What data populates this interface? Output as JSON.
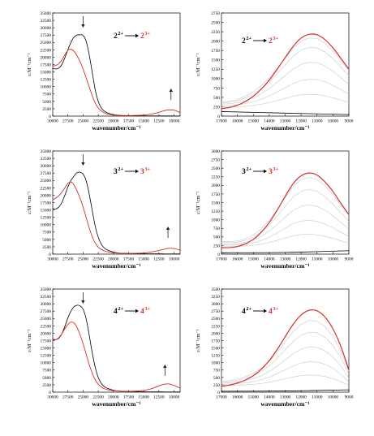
{
  "figure": {
    "colors": {
      "before": "#000000",
      "after": "#d62f2f",
      "intermediate": "#c8c8c8",
      "marker": "#1e1e1e"
    }
  },
  "chart_data": [
    {
      "type": "line",
      "panel": "2-full",
      "xlabel": "wavenumber/cm⁻¹",
      "ylabel": "ε/M⁻¹cm⁻¹",
      "xlim": [
        30000,
        9000
      ],
      "ylim": [
        0,
        35000
      ],
      "x_reversed": true,
      "xticks": [
        30000,
        27500,
        25000,
        22500,
        20000,
        17500,
        15000,
        12500,
        10000
      ],
      "yticks": [
        0,
        2500,
        5000,
        7500,
        10000,
        12500,
        15000,
        17500,
        20000,
        22500,
        25000,
        27500,
        30000,
        32500,
        35000
      ],
      "annotation": {
        "from": "2",
        "from_sup": "2+",
        "to": "2",
        "to_sup": "3+"
      },
      "arrows": [
        {
          "x": 25000,
          "direction": "down"
        },
        {
          "x": 10500,
          "direction": "up"
        }
      ],
      "series": [
        {
          "role": "before",
          "x": [
            30000,
            29500,
            29000,
            28500,
            28000,
            27500,
            27000,
            26500,
            26000,
            25500,
            25000,
            24500,
            24000,
            23500,
            23000,
            22500,
            22000,
            21500,
            21000,
            20000,
            19000,
            18000,
            17000,
            16000,
            15000,
            14000,
            13000,
            12000,
            11000,
            10000,
            9000
          ],
          "y": [
            16200,
            16000,
            16300,
            17500,
            19800,
            22500,
            25000,
            26800,
            27500,
            27600,
            27400,
            25500,
            21000,
            15000,
            9000,
            5000,
            2800,
            1700,
            1100,
            500,
            250,
            150,
            100,
            90,
            80,
            70,
            60,
            55,
            50,
            45,
            40
          ]
        },
        {
          "role": "after",
          "x": [
            30000,
            29500,
            29000,
            28500,
            28000,
            27500,
            27000,
            26500,
            26000,
            25500,
            25000,
            24500,
            24000,
            23500,
            23000,
            22500,
            22000,
            21500,
            21000,
            20000,
            19000,
            18000,
            17000,
            16000,
            15000,
            14000,
            13000,
            12000,
            11000,
            10000,
            9000
          ],
          "y": [
            17000,
            17200,
            17800,
            19000,
            20800,
            22300,
            22700,
            22000,
            20500,
            18500,
            16000,
            13000,
            10000,
            7000,
            4500,
            2800,
            1800,
            1100,
            700,
            350,
            250,
            200,
            200,
            250,
            350,
            600,
            1000,
            1600,
            2100,
            2000,
            1200
          ]
        }
      ]
    },
    {
      "type": "line",
      "panel": "2-zoom",
      "xlabel": "wavenumber/cm⁻¹",
      "ylabel": "ε/M⁻¹cm⁻¹",
      "xlim": [
        17000,
        9000
      ],
      "ylim": [
        0,
        2750
      ],
      "x_reversed": true,
      "xticks": [
        17000,
        16000,
        15000,
        14000,
        13000,
        12000,
        11000,
        10000,
        9000
      ],
      "yticks": [
        0,
        250,
        500,
        750,
        1000,
        1250,
        1500,
        1750,
        2000,
        2250,
        2500,
        2750
      ],
      "annotation": {
        "from": "2",
        "from_sup": "2+",
        "to": "2",
        "to_sup": "3+"
      },
      "band": {
        "baseline": [
          200,
          100
        ],
        "peak_x": 10800,
        "peak_heights": [
          450,
          850,
          1300,
          1700,
          1950
        ]
      },
      "series": [
        {
          "role": "before",
          "x": [
            17000,
            13000,
            9000
          ],
          "y": [
            120,
            80,
            40
          ]
        },
        {
          "role": "after",
          "x": [
            17000,
            16500,
            16000,
            15500,
            15000,
            14500,
            14000,
            13500,
            13000,
            12500,
            12000,
            11500,
            11000,
            10500,
            10000,
            9500,
            9000
          ],
          "y": [
            200,
            230,
            290,
            390,
            530,
            720,
            960,
            1250,
            1560,
            1860,
            2080,
            2180,
            2170,
            2040,
            1820,
            1540,
            1250
          ]
        }
      ]
    },
    {
      "type": "line",
      "panel": "3-full",
      "xlabel": "wavenumber/cm⁻¹",
      "ylabel": "ε/M⁻¹cm⁻¹",
      "xlim": [
        30000,
        9000
      ],
      "ylim": [
        0,
        35000
      ],
      "x_reversed": true,
      "xticks": [
        30000,
        27500,
        25000,
        22500,
        20000,
        17500,
        15000,
        12500,
        10000
      ],
      "yticks": [
        0,
        2500,
        5000,
        7500,
        10000,
        12500,
        15000,
        17500,
        20000,
        22500,
        25000,
        27500,
        30000,
        32500,
        35000
      ],
      "annotation": {
        "from": "3",
        "from_sup": "2+",
        "to": "3",
        "to_sup": "3+"
      },
      "arrows": [
        {
          "x": 25000,
          "direction": "down"
        },
        {
          "x": 11000,
          "direction": "up"
        }
      ],
      "series": [
        {
          "role": "before",
          "x": [
            30000,
            29500,
            29000,
            28500,
            28000,
            27500,
            27000,
            26500,
            26000,
            25500,
            25000,
            24500,
            24000,
            23500,
            23000,
            22500,
            22000,
            21500,
            21000,
            20000,
            19000,
            18000,
            17000,
            16000,
            15000,
            14000,
            13000,
            12000,
            11000,
            10000,
            9000
          ],
          "y": [
            15500,
            15300,
            16000,
            17500,
            20000,
            22800,
            25000,
            26500,
            27600,
            27800,
            27200,
            25000,
            20500,
            15000,
            9500,
            5800,
            3400,
            2100,
            1400,
            700,
            350,
            250,
            200,
            150,
            120,
            100,
            90,
            80,
            70,
            60,
            50
          ]
        },
        {
          "role": "after",
          "x": [
            30000,
            29500,
            29000,
            28500,
            28000,
            27500,
            27000,
            26500,
            26000,
            25500,
            25000,
            24500,
            24000,
            23500,
            23000,
            22500,
            22000,
            21500,
            21000,
            20000,
            19000,
            18000,
            17000,
            16000,
            15000,
            14000,
            13000,
            12000,
            11000,
            10000,
            9000
          ],
          "y": [
            18500,
            19000,
            19800,
            21000,
            22500,
            24000,
            24500,
            23500,
            21500,
            19000,
            16000,
            12500,
            9000,
            6000,
            3800,
            2400,
            1600,
            1100,
            800,
            450,
            300,
            250,
            250,
            300,
            400,
            650,
            1000,
            1500,
            1950,
            1900,
            1300
          ]
        }
      ]
    },
    {
      "type": "line",
      "panel": "3-zoom",
      "xlabel": "wavenumber/cm⁻¹",
      "ylabel": "ε/M⁻¹cm⁻¹",
      "xlim": [
        17000,
        9000
      ],
      "ylim": [
        0,
        3000
      ],
      "x_reversed": true,
      "xticks": [
        17000,
        16000,
        15000,
        14000,
        13000,
        12000,
        11000,
        10000,
        9000
      ],
      "yticks": [
        0,
        250,
        500,
        750,
        1000,
        1250,
        1500,
        1750,
        2000,
        2250,
        2500,
        2750,
        3000
      ],
      "annotation": {
        "from": "3",
        "from_sup": "2+",
        "to": "3",
        "to_sup": "3+"
      },
      "band": {
        "baseline": [
          200,
          100
        ],
        "peak_x": 11200,
        "peak_heights": [
          450,
          850,
          1300,
          1750,
          2100
        ]
      },
      "series": [
        {
          "role": "before",
          "x": [
            17000,
            13000,
            9000
          ],
          "y": [
            40,
            50,
            100
          ]
        },
        {
          "role": "after",
          "x": [
            17000,
            16500,
            16000,
            15500,
            15000,
            14500,
            14000,
            13500,
            13000,
            12500,
            12000,
            11500,
            11000,
            10500,
            10000,
            9500,
            9000
          ],
          "y": [
            190,
            190,
            220,
            300,
            430,
            640,
            920,
            1280,
            1680,
            2050,
            2280,
            2360,
            2300,
            2100,
            1820,
            1480,
            1150
          ]
        }
      ]
    },
    {
      "type": "line",
      "panel": "4-full",
      "xlabel": "wavenumber/cm⁻¹",
      "ylabel": "ε/M⁻¹cm⁻¹",
      "xlim": [
        30000,
        9000
      ],
      "ylim": [
        0,
        35000
      ],
      "x_reversed": true,
      "xticks": [
        30000,
        27500,
        25000,
        22500,
        20000,
        17500,
        15000,
        12500,
        10000
      ],
      "yticks": [
        0,
        2500,
        5000,
        7500,
        10000,
        12500,
        15000,
        17500,
        20000,
        22500,
        25000,
        27500,
        30000,
        32500,
        35000
      ],
      "annotation": {
        "from": "4",
        "from_sup": "2+",
        "to": "4",
        "to_sup": "3+"
      },
      "arrows": [
        {
          "x": 25000,
          "direction": "down"
        },
        {
          "x": 11500,
          "direction": "up"
        }
      ],
      "series": [
        {
          "role": "before",
          "x": [
            30000,
            29500,
            29000,
            28500,
            28000,
            27500,
            27000,
            26500,
            26000,
            25500,
            25000,
            24500,
            24000,
            23500,
            23000,
            22500,
            22000,
            21500,
            21000,
            20000,
            19000,
            18000,
            17000,
            16000,
            15000,
            14000,
            13000,
            12000,
            11000,
            10000,
            9000
          ],
          "y": [
            18000,
            17800,
            18300,
            19800,
            22300,
            25200,
            27500,
            29000,
            29500,
            29300,
            28200,
            25000,
            19500,
            13500,
            8500,
            5000,
            3000,
            1900,
            1300,
            650,
            350,
            250,
            200,
            150,
            120,
            100,
            90,
            80,
            70,
            60,
            50
          ]
        },
        {
          "role": "after",
          "x": [
            30000,
            29500,
            29000,
            28500,
            28000,
            27500,
            27000,
            26500,
            26000,
            25500,
            25000,
            24500,
            24000,
            23500,
            23000,
            22500,
            22000,
            21500,
            21000,
            20000,
            19000,
            18000,
            17000,
            16000,
            15000,
            14000,
            13000,
            12000,
            11000,
            10000,
            9000
          ],
          "y": [
            17500,
            17800,
            18500,
            19800,
            21500,
            23000,
            23800,
            23500,
            22000,
            19500,
            16500,
            13000,
            9500,
            6500,
            4200,
            2700,
            1800,
            1200,
            850,
            500,
            350,
            300,
            300,
            400,
            600,
            1000,
            1700,
            2500,
            2800,
            2300,
            1300
          ]
        }
      ]
    },
    {
      "type": "line",
      "panel": "4-zoom",
      "xlabel": "wavenumber/cm⁻¹",
      "ylabel": "ε/M⁻¹cm⁻¹",
      "xlim": [
        17000,
        9000
      ],
      "ylim": [
        0,
        3500
      ],
      "x_reversed": true,
      "xticks": [
        17000,
        16000,
        15000,
        14000,
        13000,
        12000,
        11000,
        10000,
        9000
      ],
      "yticks": [
        0,
        250,
        500,
        750,
        1000,
        1250,
        1500,
        1750,
        2000,
        2250,
        2500,
        2750,
        3000,
        3250,
        3500
      ],
      "annotation": {
        "from": "4",
        "from_sup": "2+",
        "to": "4",
        "to_sup": "3+"
      },
      "band": {
        "baseline": [
          200,
          100
        ],
        "peak_x": 11400,
        "peak_heights": [
          450,
          900,
          1400,
          1900,
          2300
        ]
      },
      "series": [
        {
          "role": "before",
          "x": [
            17000,
            13000,
            9000
          ],
          "y": [
            30,
            40,
            80
          ]
        },
        {
          "role": "after",
          "x": [
            17000,
            16500,
            16000,
            15500,
            15000,
            14500,
            14000,
            13500,
            13000,
            12500,
            12000,
            11500,
            11000,
            10500,
            10000,
            9500,
            9000
          ],
          "y": [
            200,
            240,
            310,
            410,
            560,
            780,
            1070,
            1450,
            1880,
            2300,
            2620,
            2780,
            2760,
            2550,
            2150,
            1550,
            750
          ]
        }
      ]
    }
  ]
}
